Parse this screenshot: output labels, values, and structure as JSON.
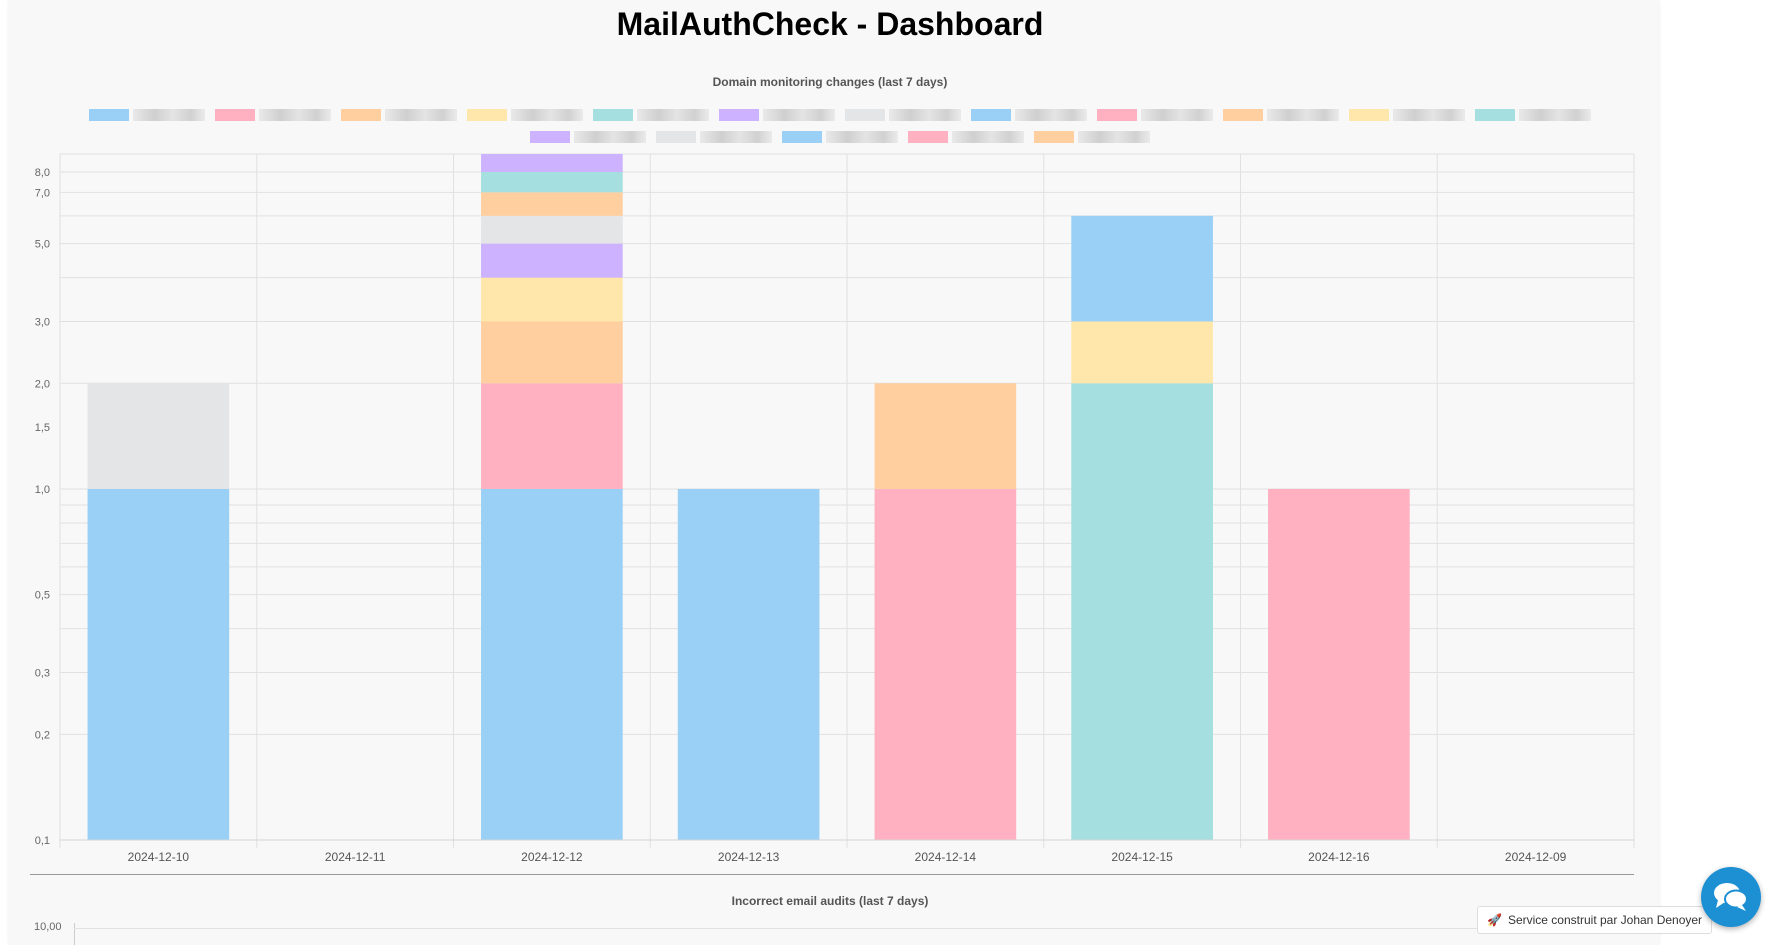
{
  "page": {
    "title": "MailAuthCheck - Dashboard"
  },
  "chart_data": [
    {
      "type": "bar",
      "stacked": true,
      "yscale": "log",
      "title": "Domain monitoring changes (last 7 days)",
      "xlabel": "",
      "ylabel": "",
      "categories": [
        "2024-12-10",
        "2024-12-11",
        "2024-12-12",
        "2024-12-13",
        "2024-12-14",
        "2024-12-15",
        "2024-12-16",
        "2024-12-09"
      ],
      "yticks": [
        0.1,
        0.2,
        0.3,
        0.5,
        1.0,
        1.5,
        2.0,
        3.0,
        5.0,
        7.0,
        8.0
      ],
      "ytick_labels": [
        "0,1",
        "0,2",
        "0,3",
        "0,5",
        "1,0",
        "1,5",
        "2,0",
        "3,0",
        "5,0",
        "7,0",
        "8,0"
      ],
      "ylim": [
        0.1,
        9
      ],
      "grid": true,
      "legend": "top",
      "segments": [
        {
          "category": "2024-12-10",
          "from": 0.1,
          "to": 1,
          "color": "#9ad0f5"
        },
        {
          "category": "2024-12-10",
          "from": 1,
          "to": 2,
          "color": "#e4e5e7"
        },
        {
          "category": "2024-12-12",
          "from": 0.1,
          "to": 1,
          "color": "#9ad0f5"
        },
        {
          "category": "2024-12-12",
          "from": 1,
          "to": 2,
          "color": "#ffb1c1"
        },
        {
          "category": "2024-12-12",
          "from": 2,
          "to": 3,
          "color": "#ffcf9f"
        },
        {
          "category": "2024-12-12",
          "from": 3,
          "to": 4,
          "color": "#ffe6aa"
        },
        {
          "category": "2024-12-12",
          "from": 4,
          "to": 5,
          "color": "#ccb2ff"
        },
        {
          "category": "2024-12-12",
          "from": 5,
          "to": 6,
          "color": "#e4e5e7"
        },
        {
          "category": "2024-12-12",
          "from": 6,
          "to": 7,
          "color": "#ffcf9f"
        },
        {
          "category": "2024-12-12",
          "from": 7,
          "to": 8,
          "color": "#a5dfdf"
        },
        {
          "category": "2024-12-12",
          "from": 8,
          "to": 9,
          "color": "#ccb2ff"
        },
        {
          "category": "2024-12-13",
          "from": 0.1,
          "to": 1,
          "color": "#9ad0f5"
        },
        {
          "category": "2024-12-14",
          "from": 0.1,
          "to": 1,
          "color": "#ffb1c1"
        },
        {
          "category": "2024-12-14",
          "from": 1,
          "to": 2,
          "color": "#ffcf9f"
        },
        {
          "category": "2024-12-15",
          "from": 0.1,
          "to": 2,
          "color": "#a5dfdf"
        },
        {
          "category": "2024-12-15",
          "from": 2,
          "to": 3,
          "color": "#ffe6aa"
        },
        {
          "category": "2024-12-15",
          "from": 3,
          "to": 6,
          "color": "#9ad0f5"
        },
        {
          "category": "2024-12-16",
          "from": 0.1,
          "to": 1,
          "color": "#ffb1c1"
        }
      ],
      "legend_colors": [
        "#9ad0f5",
        "#ffb1c1",
        "#ffcf9f",
        "#ffe6aa",
        "#a5dfdf",
        "#ccb2ff",
        "#e4e5e7",
        "#9ad0f5",
        "#ffb1c1",
        "#ffcf9f",
        "#ffe6aa",
        "#a5dfdf",
        "#ccb2ff",
        "#e4e5e7",
        "#9ad0f5",
        "#ffb1c1",
        "#ffcf9f"
      ]
    },
    {
      "type": "bar",
      "title": "Incorrect email audits (last 7 days)",
      "yticks": [
        10.0
      ],
      "ytick_labels": [
        "10,00"
      ]
    }
  ],
  "footer": {
    "credit_text": "Service construit par Johan Denoyer",
    "credit_icon": "rocket-icon",
    "chat_icon": "chat-bubbles-icon",
    "chat_color": "#1d8fd3"
  }
}
